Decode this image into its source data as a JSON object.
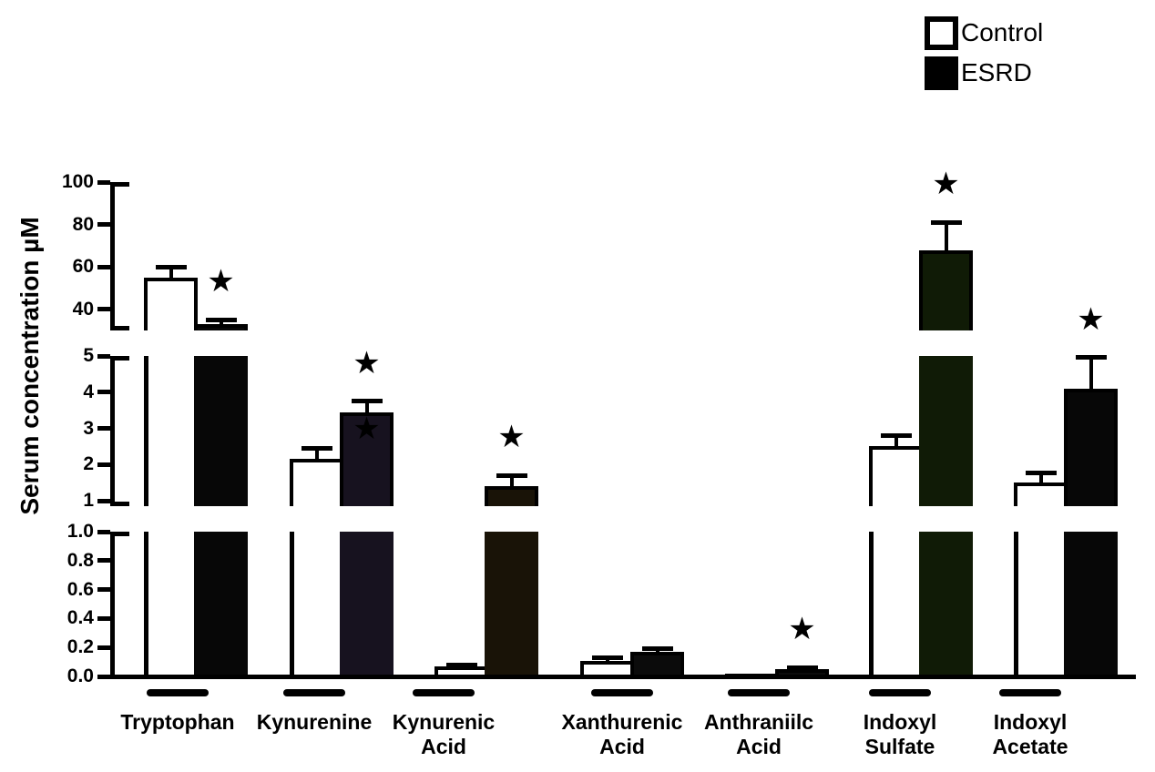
{
  "legend": {
    "items": [
      {
        "label": "Control",
        "fill": "#ffffff"
      },
      {
        "label": "ESRD",
        "fill": "#000000"
      }
    ]
  },
  "chart_data": {
    "type": "bar",
    "title": "",
    "xlabel": "",
    "ylabel": "Serum concentration µM",
    "legend_position": "top-right",
    "grid": false,
    "series": [
      "Control",
      "ESRD"
    ],
    "y_axis_segments": [
      {
        "range": [
          0,
          1.0
        ],
        "ticks": [
          "0.0",
          "0.2",
          "0.4",
          "0.6",
          "0.8",
          "1.0"
        ]
      },
      {
        "range": [
          0.85,
          5
        ],
        "ticks": [
          "1",
          "2",
          "3",
          "4",
          "5"
        ]
      },
      {
        "range": [
          30,
          100
        ],
        "ticks": [
          "40",
          "60",
          "80",
          "100"
        ]
      }
    ],
    "star_symbol": "★",
    "categories": [
      {
        "label": "Tryptophan",
        "control": {
          "value": 55,
          "err": 5
        },
        "esrd": {
          "value": 33,
          "err": 2,
          "fill": "#070707"
        },
        "star": true,
        "inner_star": false
      },
      {
        "label": "Kynurenine",
        "control": {
          "value": 2.15,
          "err": 0.3
        },
        "esrd": {
          "value": 3.45,
          "err": 0.3,
          "fill": "#17121f"
        },
        "star": true,
        "inner_star": true
      },
      {
        "label": "Kynurenic\nAcid",
        "control": {
          "value": 0.07,
          "err": 0.01
        },
        "esrd": {
          "value": 1.4,
          "err": 0.3,
          "fill": "#191307"
        },
        "star": true,
        "inner_star": false
      },
      {
        "label": "Xanthurenic\nAcid",
        "control": {
          "value": 0.11,
          "err": 0.02
        },
        "esrd": {
          "value": 0.17,
          "err": 0.02,
          "fill": "#0b0b0b"
        },
        "star": false,
        "inner_star": false
      },
      {
        "label": "Anthraniilc\nAcid",
        "control": {
          "value": 0.02,
          "err": 0
        },
        "esrd": {
          "value": 0.05,
          "err": 0.01,
          "fill": "#0b0b0b"
        },
        "star": true,
        "inner_star": false
      },
      {
        "label": "Indoxyl\nSulfate",
        "control": {
          "value": 2.5,
          "err": 0.3
        },
        "esrd": {
          "value": 68,
          "err": 13,
          "fill": "#101b06"
        },
        "star": true,
        "inner_star": false
      },
      {
        "label": "Indoxyl\nAcetate",
        "control": {
          "value": 1.5,
          "err": 0.27
        },
        "esrd": {
          "value": 4.1,
          "err": 0.85,
          "fill": "#070707"
        },
        "star": true,
        "inner_star": false
      }
    ]
  }
}
